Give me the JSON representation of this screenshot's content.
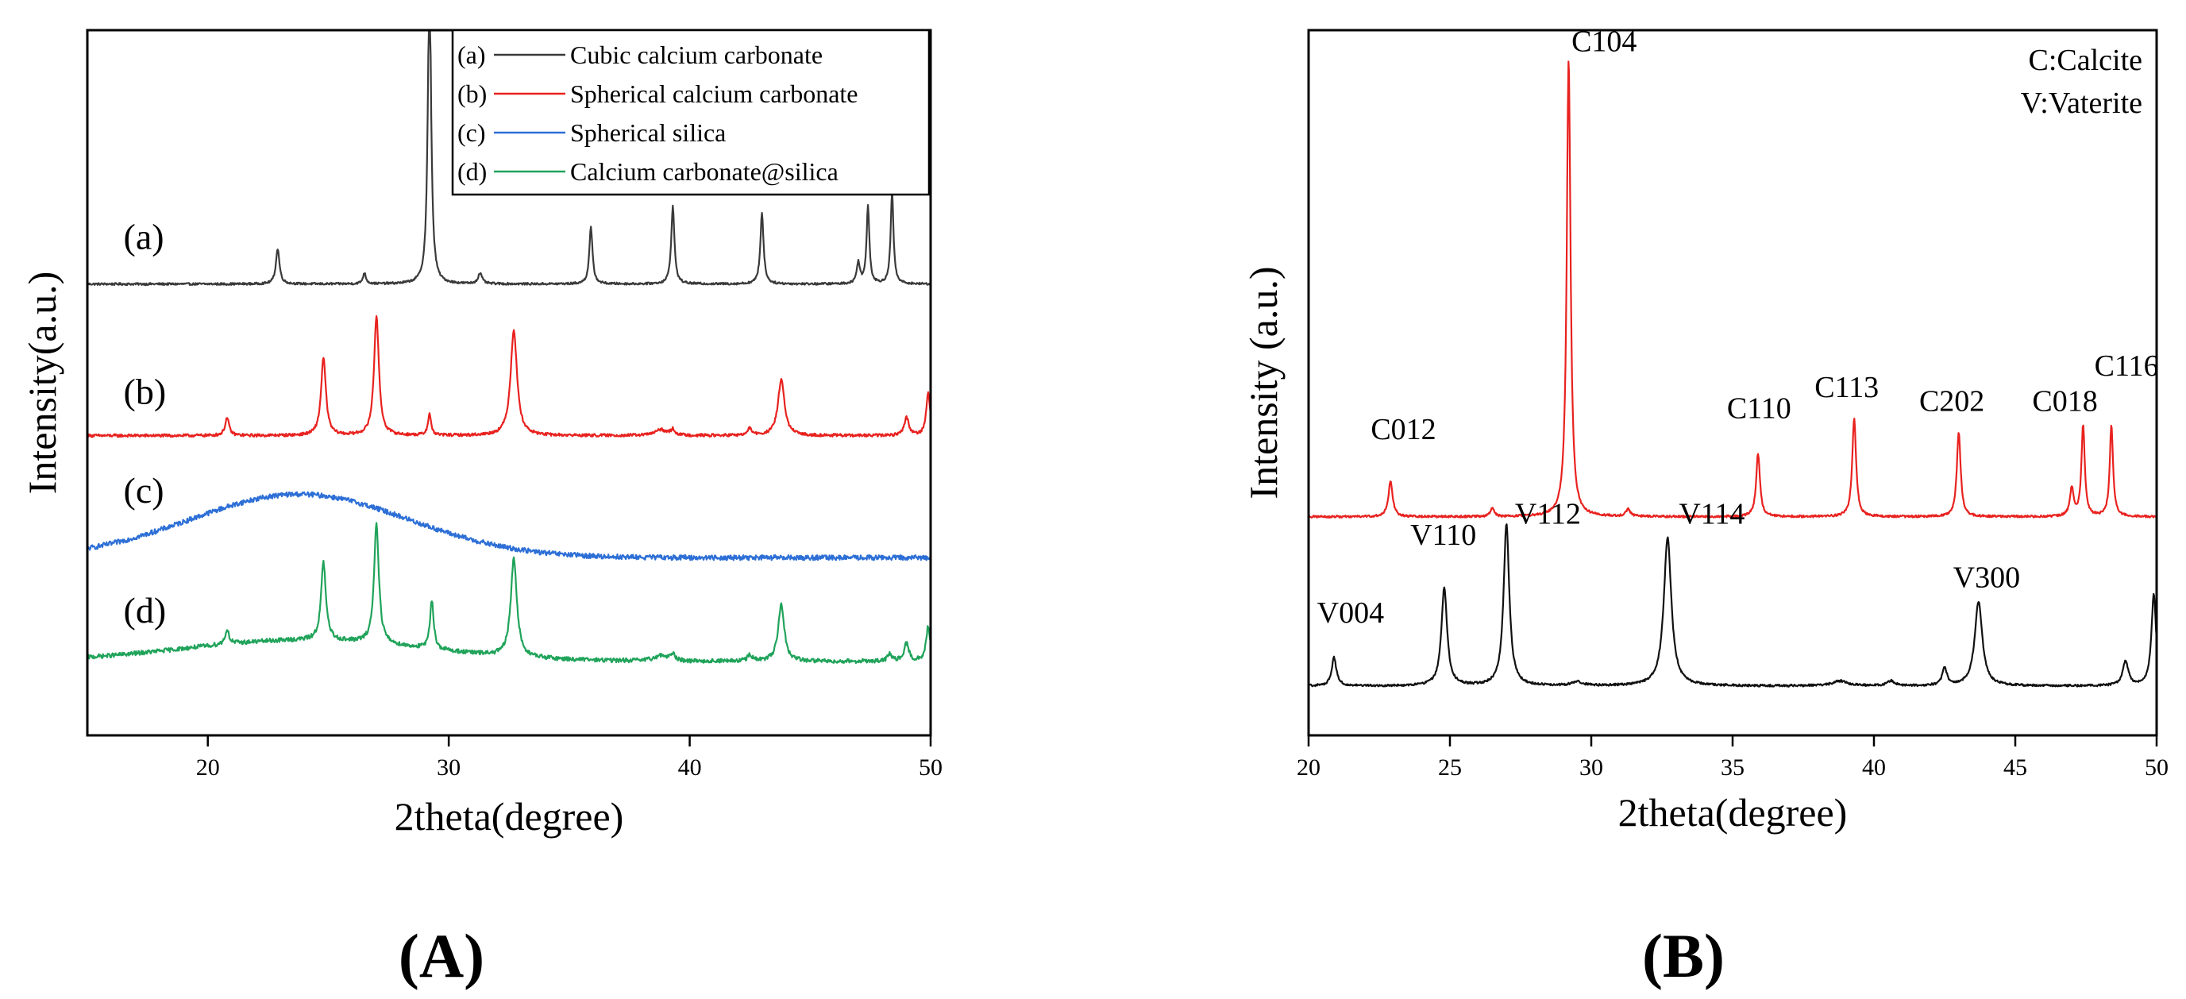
{
  "panels": {
    "A": {
      "label": "(A)"
    },
    "B": {
      "label": "(B)"
    }
  },
  "chart_data": [
    {
      "id": "A",
      "type": "line",
      "title": "",
      "xlabel": "2theta(degree)",
      "ylabel": "Intensity(a.u.)",
      "xlim": [
        15,
        50
      ],
      "ylim": [
        0,
        100
      ],
      "xticks": [
        20,
        30,
        40,
        50
      ],
      "grid": false,
      "legend_position": "top-right",
      "legend": [
        {
          "key": "(a)",
          "name": "Cubic calcium carbonate"
        },
        {
          "key": "(b)",
          "name": "Spherical calcium carbonate"
        },
        {
          "key": "(c)",
          "name": "Spherical silica"
        },
        {
          "key": "(d)",
          "name": "Calcium carbonate@silica"
        }
      ],
      "series": [
        {
          "key": "(a)",
          "name": "Cubic calcium carbonate",
          "color": "#3a3a3a",
          "baseline": 64,
          "noise": 0.15,
          "background": [],
          "peaks": [
            [
              22.9,
              5,
              0.09
            ],
            [
              26.5,
              1.5,
              0.08
            ],
            [
              29.2,
              45,
              0.08
            ],
            [
              31.3,
              1.5,
              0.1
            ],
            [
              35.9,
              8,
              0.08
            ],
            [
              39.3,
              11,
              0.08
            ],
            [
              43.0,
              10,
              0.08
            ],
            [
              47.0,
              3,
              0.08
            ],
            [
              47.4,
              11,
              0.07
            ],
            [
              48.4,
              13,
              0.07
            ]
          ]
        },
        {
          "key": "(b)",
          "name": "Spherical calcium carbonate",
          "color": "#e8221f",
          "baseline": 42.5,
          "noise": 0.2,
          "background": [],
          "peaks": [
            [
              20.8,
              2.5,
              0.1
            ],
            [
              24.8,
              11,
              0.12
            ],
            [
              27.0,
              17,
              0.12
            ],
            [
              29.2,
              3,
              0.08
            ],
            [
              32.7,
              15,
              0.16
            ],
            [
              38.8,
              0.8,
              0.3
            ],
            [
              39.3,
              0.8,
              0.1
            ],
            [
              42.5,
              1,
              0.1
            ],
            [
              43.8,
              8,
              0.16
            ],
            [
              49.0,
              2.5,
              0.12
            ],
            [
              49.9,
              6,
              0.1
            ]
          ]
        },
        {
          "key": "(c)",
          "name": "Spherical silica",
          "color": "#2d6fd6",
          "baseline": 25.2,
          "noise": 0.35,
          "peaks": [],
          "background": [
            [
              23.8,
              9,
              4.5
            ]
          ]
        },
        {
          "key": "(d)",
          "name": "Calcium carbonate@silica",
          "color": "#20a35a",
          "baseline": 10.5,
          "noise": 0.3,
          "background": [
            [
              24,
              3,
              5
            ]
          ],
          "peaks": [
            [
              20.8,
              2,
              0.1
            ],
            [
              24.8,
              11,
              0.12
            ],
            [
              27.0,
              17,
              0.12
            ],
            [
              29.3,
              7,
              0.09
            ],
            [
              32.7,
              14,
              0.15
            ],
            [
              38.8,
              0.8,
              0.3
            ],
            [
              39.3,
              1,
              0.1
            ],
            [
              42.5,
              1,
              0.1
            ],
            [
              43.8,
              8,
              0.15
            ],
            [
              48.3,
              1,
              0.1
            ],
            [
              49.0,
              2.5,
              0.12
            ],
            [
              49.9,
              5,
              0.1
            ]
          ]
        }
      ],
      "annotations": [
        {
          "text": "(a)",
          "x": 16.5,
          "y": 69
        },
        {
          "text": "(b)",
          "x": 16.5,
          "y": 47
        },
        {
          "text": "(c)",
          "x": 16.5,
          "y": 33
        },
        {
          "text": "(d)",
          "x": 16.5,
          "y": 16
        }
      ]
    },
    {
      "id": "B",
      "type": "line",
      "title": "",
      "xlabel": "2theta(degree)",
      "ylabel": "Intensity (a.u.)",
      "xlim": [
        20,
        50
      ],
      "ylim": [
        0,
        100
      ],
      "xticks": [
        20,
        25,
        30,
        35,
        40,
        45,
        50
      ],
      "grid": false,
      "legend_position": "top-right",
      "legend_text": [
        "C:Calcite",
        "V:Vaterite"
      ],
      "series": [
        {
          "name": "Calcite",
          "color": "#e8221f",
          "baseline": 31,
          "noise": 0.15,
          "background": [],
          "peaks": [
            [
              22.9,
              5,
              0.09
            ],
            [
              26.5,
              1.2,
              0.08
            ],
            [
              29.2,
              65,
              0.08
            ],
            [
              31.3,
              1,
              0.1
            ],
            [
              35.9,
              9,
              0.08
            ],
            [
              39.3,
              14,
              0.08
            ],
            [
              43.0,
              12,
              0.08
            ],
            [
              47.0,
              4,
              0.08
            ],
            [
              47.4,
              13,
              0.07
            ],
            [
              48.4,
              13,
              0.07
            ]
          ]
        },
        {
          "name": "Vaterite",
          "color": "#111111",
          "baseline": 7,
          "noise": 0.15,
          "background": [],
          "peaks": [
            [
              20.9,
              4,
              0.1
            ],
            [
              24.8,
              14,
              0.12
            ],
            [
              27.0,
              23,
              0.12
            ],
            [
              29.5,
              0.6,
              0.2
            ],
            [
              32.7,
              21,
              0.16
            ],
            [
              38.8,
              0.7,
              0.3
            ],
            [
              40.6,
              0.7,
              0.15
            ],
            [
              42.5,
              2.5,
              0.1
            ],
            [
              43.7,
              12,
              0.16
            ],
            [
              48.9,
              3.5,
              0.12
            ],
            [
              49.9,
              13,
              0.1
            ]
          ]
        }
      ],
      "annotations": [
        {
          "text": "C104",
          "x": 29.3,
          "y": 97
        },
        {
          "text": "C012",
          "x": 22.2,
          "y": 42
        },
        {
          "text": "C110",
          "x": 34.8,
          "y": 45
        },
        {
          "text": "C113",
          "x": 37.9,
          "y": 48
        },
        {
          "text": "C202",
          "x": 41.6,
          "y": 46
        },
        {
          "text": "C018",
          "x": 45.6,
          "y": 46
        },
        {
          "text": "C116",
          "x": 47.8,
          "y": 51
        },
        {
          "text": "V004",
          "x": 20.3,
          "y": 16
        },
        {
          "text": "V110",
          "x": 23.6,
          "y": 27
        },
        {
          "text": "V112",
          "x": 27.3,
          "y": 30
        },
        {
          "text": "V114",
          "x": 33.1,
          "y": 30
        },
        {
          "text": "V300",
          "x": 42.8,
          "y": 21
        }
      ]
    }
  ]
}
